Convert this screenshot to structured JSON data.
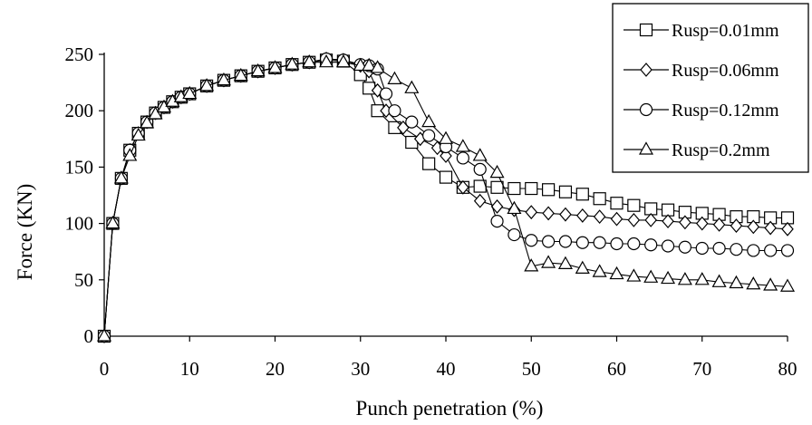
{
  "chart_data": {
    "type": "line",
    "title": "",
    "xlabel": "Punch penetration (%)",
    "ylabel": "Force (KN)",
    "xlim": [
      0,
      80
    ],
    "ylim": [
      0,
      250
    ],
    "xticks": [
      "0",
      "10",
      "20",
      "30",
      "40",
      "50",
      "60",
      "70",
      "80"
    ],
    "yticks": [
      "0",
      "50",
      "100",
      "150",
      "200",
      "250"
    ],
    "grid": false,
    "legend_position": "top-right",
    "series": [
      {
        "name": "Rusp=0.01mm",
        "marker": "square",
        "points": [
          [
            0,
            0
          ],
          [
            1,
            100
          ],
          [
            2,
            140
          ],
          [
            3,
            165
          ],
          [
            4,
            180
          ],
          [
            5,
            190
          ],
          [
            6,
            198
          ],
          [
            7,
            203
          ],
          [
            8,
            208
          ],
          [
            9,
            212
          ],
          [
            10,
            215
          ],
          [
            12,
            222
          ],
          [
            14,
            227
          ],
          [
            16,
            231
          ],
          [
            18,
            235
          ],
          [
            20,
            238
          ],
          [
            22,
            241
          ],
          [
            24,
            243
          ],
          [
            26,
            245
          ],
          [
            28,
            244
          ],
          [
            30,
            232
          ],
          [
            31,
            220
          ],
          [
            32,
            200
          ],
          [
            34,
            185
          ],
          [
            36,
            172
          ],
          [
            38,
            153
          ],
          [
            40,
            141
          ],
          [
            42,
            132
          ],
          [
            44,
            133
          ],
          [
            46,
            132
          ],
          [
            48,
            131
          ],
          [
            50,
            131
          ],
          [
            52,
            130
          ],
          [
            54,
            128
          ],
          [
            56,
            126
          ],
          [
            58,
            122
          ],
          [
            60,
            118
          ],
          [
            62,
            116
          ],
          [
            64,
            113
          ],
          [
            66,
            112
          ],
          [
            68,
            110
          ],
          [
            70,
            109
          ],
          [
            72,
            108
          ],
          [
            74,
            106
          ],
          [
            76,
            106
          ],
          [
            78,
            105
          ],
          [
            80,
            105
          ]
        ]
      },
      {
        "name": "Rusp=0.06mm",
        "marker": "diamond",
        "points": [
          [
            0,
            0
          ],
          [
            1,
            100
          ],
          [
            2,
            140
          ],
          [
            3,
            165
          ],
          [
            4,
            180
          ],
          [
            5,
            190
          ],
          [
            6,
            198
          ],
          [
            7,
            203
          ],
          [
            8,
            208
          ],
          [
            9,
            212
          ],
          [
            10,
            215
          ],
          [
            12,
            222
          ],
          [
            14,
            227
          ],
          [
            16,
            231
          ],
          [
            18,
            235
          ],
          [
            20,
            238
          ],
          [
            22,
            241
          ],
          [
            24,
            243
          ],
          [
            26,
            246
          ],
          [
            28,
            245
          ],
          [
            30,
            240
          ],
          [
            31,
            235
          ],
          [
            32,
            218
          ],
          [
            33,
            200
          ],
          [
            35,
            185
          ],
          [
            37,
            175
          ],
          [
            39,
            167
          ],
          [
            40,
            160
          ],
          [
            42,
            132
          ],
          [
            44,
            120
          ],
          [
            46,
            115
          ],
          [
            48,
            112
          ],
          [
            50,
            110
          ],
          [
            52,
            109
          ],
          [
            54,
            108
          ],
          [
            56,
            107
          ],
          [
            58,
            106
          ],
          [
            60,
            104
          ],
          [
            62,
            103
          ],
          [
            64,
            103
          ],
          [
            66,
            102
          ],
          [
            68,
            101
          ],
          [
            70,
            100
          ],
          [
            72,
            99
          ],
          [
            74,
            98
          ],
          [
            76,
            97
          ],
          [
            78,
            96
          ],
          [
            80,
            95
          ]
        ]
      },
      {
        "name": "Rusp=0.12mm",
        "marker": "circle",
        "points": [
          [
            0,
            0
          ],
          [
            1,
            100
          ],
          [
            2,
            140
          ],
          [
            3,
            165
          ],
          [
            4,
            180
          ],
          [
            5,
            190
          ],
          [
            6,
            198
          ],
          [
            7,
            203
          ],
          [
            8,
            208
          ],
          [
            9,
            212
          ],
          [
            10,
            215
          ],
          [
            12,
            222
          ],
          [
            14,
            227
          ],
          [
            16,
            231
          ],
          [
            18,
            235
          ],
          [
            20,
            238
          ],
          [
            22,
            241
          ],
          [
            24,
            243
          ],
          [
            26,
            246
          ],
          [
            28,
            245
          ],
          [
            30,
            241
          ],
          [
            31,
            240
          ],
          [
            32,
            237
          ],
          [
            33,
            215
          ],
          [
            34,
            200
          ],
          [
            36,
            190
          ],
          [
            38,
            178
          ],
          [
            40,
            168
          ],
          [
            42,
            158
          ],
          [
            44,
            148
          ],
          [
            46,
            102
          ],
          [
            48,
            90
          ],
          [
            50,
            85
          ],
          [
            52,
            84
          ],
          [
            54,
            84
          ],
          [
            56,
            83
          ],
          [
            58,
            83
          ],
          [
            60,
            82
          ],
          [
            62,
            82
          ],
          [
            64,
            81
          ],
          [
            66,
            80
          ],
          [
            68,
            79
          ],
          [
            70,
            78
          ],
          [
            72,
            78
          ],
          [
            74,
            77
          ],
          [
            76,
            76
          ],
          [
            78,
            76
          ],
          [
            80,
            76
          ]
        ]
      },
      {
        "name": "Rusp=0.2mm",
        "marker": "triangle",
        "points": [
          [
            0,
            0
          ],
          [
            1,
            100
          ],
          [
            2,
            140
          ],
          [
            3,
            160
          ],
          [
            4,
            178
          ],
          [
            5,
            189
          ],
          [
            6,
            197
          ],
          [
            7,
            203
          ],
          [
            8,
            208
          ],
          [
            9,
            212
          ],
          [
            10,
            215
          ],
          [
            12,
            222
          ],
          [
            14,
            227
          ],
          [
            16,
            231
          ],
          [
            18,
            235
          ],
          [
            20,
            238
          ],
          [
            22,
            241
          ],
          [
            24,
            243
          ],
          [
            26,
            243
          ],
          [
            28,
            243
          ],
          [
            30,
            240
          ],
          [
            31,
            240
          ],
          [
            32,
            238
          ],
          [
            34,
            228
          ],
          [
            36,
            220
          ],
          [
            38,
            190
          ],
          [
            40,
            175
          ],
          [
            42,
            168
          ],
          [
            44,
            160
          ],
          [
            46,
            145
          ],
          [
            48,
            113
          ],
          [
            50,
            62
          ],
          [
            52,
            65
          ],
          [
            54,
            64
          ],
          [
            56,
            60
          ],
          [
            58,
            57
          ],
          [
            60,
            55
          ],
          [
            62,
            53
          ],
          [
            64,
            52
          ],
          [
            66,
            51
          ],
          [
            68,
            50
          ],
          [
            70,
            50
          ],
          [
            72,
            48
          ],
          [
            74,
            47
          ],
          [
            76,
            46
          ],
          [
            78,
            45
          ],
          [
            80,
            44
          ]
        ]
      }
    ]
  }
}
